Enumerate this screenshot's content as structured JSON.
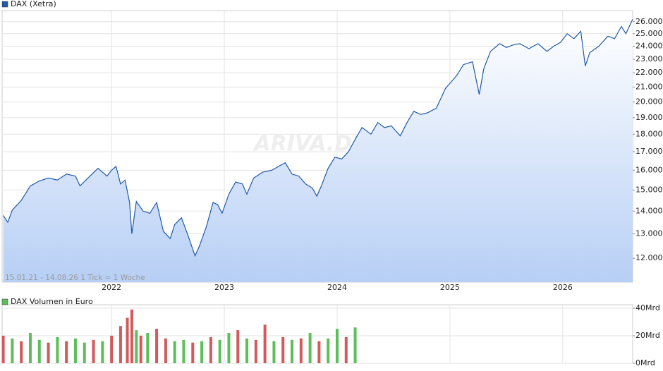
{
  "chart_data": [
    {
      "type": "line",
      "title": "DAX (Xetra)",
      "annotation": "15.01.21 - 14.08.26   1 Tick = 1 Woche",
      "watermark": "ARIVA.DE",
      "color": "#1f5aa8",
      "area_color": "#b7cff5",
      "log_scale": true,
      "grid": true,
      "x": [
        2021.04,
        2021.08,
        2021.12,
        2021.2,
        2021.28,
        2021.36,
        2021.44,
        2021.52,
        2021.6,
        2021.68,
        2021.72,
        2021.8,
        2021.88,
        2021.92,
        2021.96,
        2022.0,
        2022.04,
        2022.08,
        2022.12,
        2022.16,
        2022.18,
        2022.22,
        2022.28,
        2022.34,
        2022.4,
        2022.46,
        2022.52,
        2022.56,
        2022.62,
        2022.68,
        2022.74,
        2022.78,
        2022.84,
        2022.9,
        2022.94,
        2022.98,
        2023.04,
        2023.1,
        2023.16,
        2023.2,
        2023.26,
        2023.34,
        2023.42,
        2023.48,
        2023.54,
        2023.6,
        2023.66,
        2023.72,
        2023.78,
        2023.82,
        2023.86,
        2023.92,
        2023.98,
        2024.04,
        2024.1,
        2024.16,
        2024.22,
        2024.3,
        2024.36,
        2024.42,
        2024.48,
        2024.56,
        2024.62,
        2024.68,
        2024.74,
        2024.8,
        2024.88,
        2024.96,
        2025.06,
        2025.12,
        2025.2,
        2025.26,
        2025.3,
        2025.36,
        2025.44,
        2025.5,
        2025.56,
        2025.62,
        2025.7,
        2025.78,
        2025.86,
        2025.92,
        2025.98,
        2026.04,
        2026.1,
        2026.16,
        2026.2,
        2026.24,
        2026.32,
        2026.4,
        2026.46,
        2026.52,
        2026.56,
        2026.62
      ],
      "values": [
        13800,
        13500,
        14050,
        14500,
        15200,
        15450,
        15600,
        15500,
        15800,
        15700,
        15200,
        15650,
        16100,
        15900,
        15700,
        16000,
        16200,
        15300,
        15500,
        14400,
        13000,
        14450,
        14000,
        13900,
        14400,
        13100,
        12800,
        13400,
        13700,
        12900,
        12100,
        12500,
        13300,
        14400,
        14300,
        13900,
        14800,
        15400,
        15300,
        14800,
        15600,
        15900,
        16000,
        16200,
        16400,
        15800,
        15700,
        15300,
        15100,
        14700,
        15200,
        16100,
        16700,
        16600,
        17000,
        17700,
        18400,
        18000,
        18700,
        18400,
        18500,
        17900,
        18700,
        19400,
        19200,
        19300,
        19600,
        20900,
        21800,
        22600,
        22800,
        20500,
        22300,
        23600,
        24200,
        23900,
        24100,
        24200,
        23800,
        24200,
        23600,
        24000,
        24300,
        25000,
        24600,
        25200,
        22500,
        23500,
        24000,
        24800,
        24600,
        25600,
        25000,
        26200
      ],
      "xlim": [
        2021.03,
        2026.62
      ],
      "xticks": [
        2022,
        2023,
        2024,
        2025,
        2026
      ],
      "ylim": [
        11100,
        26900
      ],
      "yticks": [
        {
          "value": 12000,
          "label": "12.000"
        },
        {
          "value": 13000,
          "label": "13.000"
        },
        {
          "value": 14000,
          "label": "14.000"
        },
        {
          "value": 15000,
          "label": "15.000"
        },
        {
          "value": 16000,
          "label": "16.000"
        },
        {
          "value": 17000,
          "label": "17.000"
        },
        {
          "value": 18000,
          "label": "18.000"
        },
        {
          "value": 19000,
          "label": "19.000"
        },
        {
          "value": 20000,
          "label": "20.000"
        },
        {
          "value": 21000,
          "label": "21.000"
        },
        {
          "value": 22000,
          "label": "22.000"
        },
        {
          "value": 23000,
          "label": "23.000"
        },
        {
          "value": 24000,
          "label": "24.000"
        },
        {
          "value": 25000,
          "label": "25.000"
        },
        {
          "value": 26000,
          "label": "26.000"
        }
      ]
    },
    {
      "type": "bar",
      "title": "DAX Volumen in Euro",
      "color": "#5cbf5c",
      "grid": true,
      "x": [
        2021.04,
        2021.12,
        2021.2,
        2021.28,
        2021.36,
        2021.44,
        2021.52,
        2021.6,
        2021.68,
        2021.76,
        2021.84,
        2021.92,
        2022.0,
        2022.08,
        2022.14,
        2022.18,
        2022.22,
        2022.26,
        2022.32,
        2022.4,
        2022.48,
        2022.56,
        2022.64,
        2022.72,
        2022.8,
        2022.88,
        2022.96,
        2023.04,
        2023.12,
        2023.2,
        2023.28,
        2023.36,
        2023.44,
        2023.52,
        2023.6,
        2023.68,
        2023.76,
        2023.84,
        2023.92,
        2024.0,
        2024.08,
        2024.16
      ],
      "values": [
        20,
        18,
        16,
        22,
        17,
        15,
        19,
        16,
        18,
        15,
        17,
        16,
        20,
        27,
        33,
        39,
        24,
        20,
        22,
        25,
        18,
        16,
        17,
        15,
        16,
        19,
        17,
        22,
        24,
        18,
        17,
        28,
        16,
        19,
        17,
        18,
        22,
        16,
        18,
        25,
        19,
        26
      ],
      "colors": [
        "#d35a5a",
        "#5cbf5c",
        "#d35a5a",
        "#5cbf5c",
        "#5cbf5c",
        "#d35a5a",
        "#5cbf5c",
        "#d35a5a",
        "#5cbf5c",
        "#5cbf5c",
        "#d35a5a",
        "#5cbf5c",
        "#d35a5a",
        "#d35a5a",
        "#d35a5a",
        "#d35a5a",
        "#5cbf5c",
        "#d35a5a",
        "#5cbf5c",
        "#d35a5a",
        "#d35a5a",
        "#5cbf5c",
        "#5cbf5c",
        "#d35a5a",
        "#5cbf5c",
        "#d35a5a",
        "#5cbf5c",
        "#5cbf5c",
        "#d35a5a",
        "#5cbf5c",
        "#d35a5a",
        "#d35a5a",
        "#5cbf5c",
        "#d35a5a",
        "#5cbf5c",
        "#d35a5a",
        "#5cbf5c",
        "#d35a5a",
        "#5cbf5c",
        "#5cbf5c",
        "#d35a5a",
        "#5cbf5c"
      ],
      "xlim": [
        2021.03,
        2026.62
      ],
      "xticks": [
        2022,
        2023,
        2024,
        2025,
        2026
      ],
      "ylim": [
        0,
        42
      ],
      "yticks": [
        {
          "value": 0,
          "label": "0Mrd"
        },
        {
          "value": 20,
          "label": "20Mrd"
        },
        {
          "value": 40,
          "label": "40Mrd"
        }
      ]
    }
  ]
}
